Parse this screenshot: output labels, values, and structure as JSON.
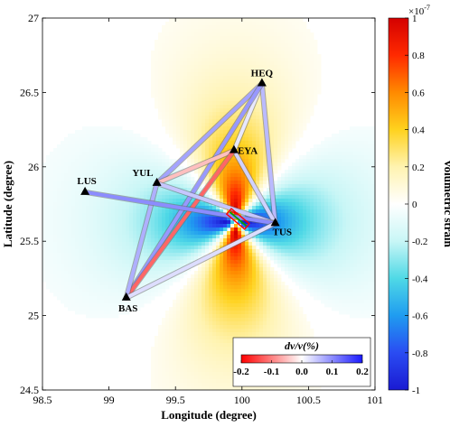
{
  "chart_data": {
    "type": "heatmap",
    "title": "",
    "xlabel": "Longitude (degree)",
    "ylabel": "Latitude (degree)",
    "xlim": [
      98.5,
      101
    ],
    "ylim": [
      24.5,
      27
    ],
    "xticks": [
      98.5,
      99,
      99.5,
      100,
      100.5,
      101
    ],
    "xtick_labels": [
      "98.5",
      "99",
      "99.5",
      "100",
      "100.5",
      "101"
    ],
    "yticks": [
      24.5,
      25,
      25.5,
      26,
      26.5,
      27
    ],
    "ytick_labels": [
      "24.5",
      "25",
      "25.5",
      "26",
      "26.5",
      "27"
    ],
    "field": {
      "pattern": "quadrupole",
      "center": [
        99.95,
        25.63
      ],
      "description_positive_lobes": "north and south",
      "description_negative_lobes": "east and west"
    },
    "colorbar": {
      "label": "volumetric strain",
      "exponent_label": "×10",
      "exponent_power": "-7",
      "min": -1,
      "max": 1,
      "ticks": [
        1,
        0.8,
        0.6,
        0.4,
        0.2,
        0,
        -0.2,
        -0.4,
        -0.6,
        -0.8,
        -1
      ],
      "tick_labels": [
        "1",
        "0.8",
        "0.6",
        "0.4",
        "0.2",
        "0",
        "-0.2",
        "-0.4",
        "-0.6",
        "-0.8",
        "-1"
      ],
      "colors": [
        "#d40000",
        "#ff2a00",
        "#ff8a00",
        "#ffd21e",
        "#fff3b0",
        "#ffffff",
        "#c8f6f6",
        "#4fd9e6",
        "#1f9cf0",
        "#2a4cf2",
        "#1a1ad2"
      ]
    },
    "stations": [
      {
        "name": "HEQ",
        "lon": 100.15,
        "lat": 26.56
      },
      {
        "name": "EYA",
        "lon": 99.94,
        "lat": 26.11
      },
      {
        "name": "YUL",
        "lon": 99.36,
        "lat": 25.89
      },
      {
        "name": "LUS",
        "lon": 98.82,
        "lat": 25.83
      },
      {
        "name": "TUS",
        "lon": 100.25,
        "lat": 25.62
      },
      {
        "name": "BAS",
        "lon": 99.13,
        "lat": 25.12
      }
    ],
    "station_pairs": [
      {
        "from": "HEQ",
        "to": "YUL",
        "dvv": 0.08
      },
      {
        "from": "HEQ",
        "to": "EYA",
        "dvv": 0.02
      },
      {
        "from": "HEQ",
        "to": "TUS",
        "dvv": 0.06
      },
      {
        "from": "HEQ",
        "to": "BAS",
        "dvv": 0.09
      },
      {
        "from": "EYA",
        "to": "YUL",
        "dvv": -0.05
      },
      {
        "from": "EYA",
        "to": "TUS",
        "dvv": 0.04
      },
      {
        "from": "EYA",
        "to": "BAS",
        "dvv": -0.12
      },
      {
        "from": "YUL",
        "to": "TUS",
        "dvv": 0.05
      },
      {
        "from": "YUL",
        "to": "BAS",
        "dvv": 0.07
      },
      {
        "from": "LUS",
        "to": "TUS",
        "dvv": 0.1
      },
      {
        "from": "BAS",
        "to": "TUS",
        "dvv": 0.03
      }
    ],
    "dvv_colorbar": {
      "label": "dv/v(%)",
      "min": -0.2,
      "max": 0.2,
      "ticks": [
        -0.2,
        -0.1,
        0.0,
        0.1,
        0.2
      ],
      "tick_labels": [
        "-0.2",
        "-0.1",
        "0.0",
        "0.1",
        "0.2"
      ],
      "colors": [
        "#ff0000",
        "#ffffff",
        "#1a1aff"
      ]
    },
    "fault_marker": {
      "center": [
        99.97,
        25.65
      ],
      "color_outline": "#ff0000",
      "color_trace": "#00a000"
    }
  }
}
